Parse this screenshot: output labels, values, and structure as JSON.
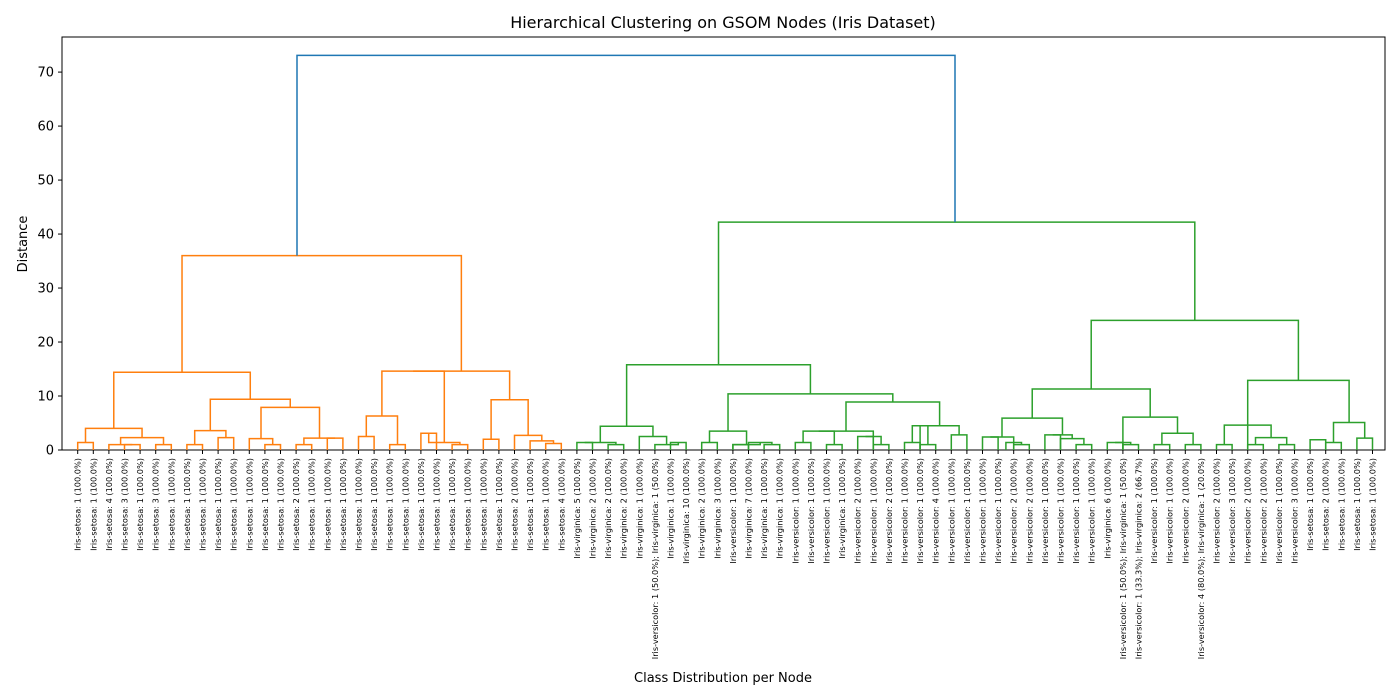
{
  "chart_data": {
    "type": "dendrogram",
    "title": "Hierarchical Clustering on GSOM Nodes (Iris Dataset)",
    "xlabel": "Class Distribution per Node",
    "ylabel": "Distance",
    "ylim": [
      0,
      76.5
    ],
    "yticks": [
      0,
      10,
      20,
      30,
      40,
      50,
      60,
      70
    ],
    "grid": false,
    "colors": {
      "root": "#1f77b4",
      "cluster_1": "#ff7f0e",
      "cluster_2": "#2ca02c"
    },
    "leaves": [
      "Iris-setosa: 1 (100.0%)",
      "Iris-setosa: 1 (100.0%)",
      "Iris-setosa: 4 (100.0%)",
      "Iris-setosa: 3 (100.0%)",
      "Iris-setosa: 1 (100.0%)",
      "Iris-setosa: 3 (100.0%)",
      "Iris-setosa: 1 (100.0%)",
      "Iris-setosa: 1 (100.0%)",
      "Iris-setosa: 1 (100.0%)",
      "Iris-setosa: 1 (100.0%)",
      "Iris-setosa: 1 (100.0%)",
      "Iris-setosa: 1 (100.0%)",
      "Iris-setosa: 1 (100.0%)",
      "Iris-setosa: 1 (100.0%)",
      "Iris-setosa: 2 (100.0%)",
      "Iris-setosa: 1 (100.0%)",
      "Iris-setosa: 1 (100.0%)",
      "Iris-setosa: 1 (100.0%)",
      "Iris-setosa: 1 (100.0%)",
      "Iris-setosa: 1 (100.0%)",
      "Iris-setosa: 1 (100.0%)",
      "Iris-setosa: 1 (100.0%)",
      "Iris-setosa: 1 (100.0%)",
      "Iris-setosa: 1 (100.0%)",
      "Iris-setosa: 1 (100.0%)",
      "Iris-setosa: 1 (100.0%)",
      "Iris-setosa: 1 (100.0%)",
      "Iris-setosa: 1 (100.0%)",
      "Iris-setosa: 2 (100.0%)",
      "Iris-setosa: 1 (100.0%)",
      "Iris-setosa: 1 (100.0%)",
      "Iris-setosa: 4 (100.0%)",
      "Iris-virginica: 5 (100.0%)",
      "Iris-virginica: 2 (100.0%)",
      "Iris-virginica: 2 (100.0%)",
      "Iris-virginica: 2 (100.0%)",
      "Iris-virginica: 1 (100.0%)",
      "Iris-versicolor: 1 (50.0%); Iris-virginica: 1 (50.0%)",
      "Iris-virginica: 1 (100.0%)",
      "Iris-virginica: 10 (100.0%)",
      "Iris-virginica: 2 (100.0%)",
      "Iris-virginica: 3 (100.0%)",
      "Iris-versicolor: 1 (100.0%)",
      "Iris-virginica: 7 (100.0%)",
      "Iris-virginica: 1 (100.0%)",
      "Iris-virginica: 1 (100.0%)",
      "Iris-versicolor: 1 (100.0%)",
      "Iris-versicolor: 1 (100.0%)",
      "Iris-versicolor: 1 (100.0%)",
      "Iris-virginica: 1 (100.0%)",
      "Iris-versicolor: 2 (100.0%)",
      "Iris-versicolor: 1 (100.0%)",
      "Iris-versicolor: 2 (100.0%)",
      "Iris-versicolor: 1 (100.0%)",
      "Iris-versicolor: 1 (100.0%)",
      "Iris-versicolor: 4 (100.0%)",
      "Iris-versicolor: 1 (100.0%)",
      "Iris-versicolor: 1 (100.0%)",
      "Iris-versicolor: 1 (100.0%)",
      "Iris-versicolor: 1 (100.0%)",
      "Iris-versicolor: 2 (100.0%)",
      "Iris-versicolor: 2 (100.0%)",
      "Iris-versicolor: 1 (100.0%)",
      "Iris-versicolor: 1 (100.0%)",
      "Iris-versicolor: 1 (100.0%)",
      "Iris-versicolor: 1 (100.0%)",
      "Iris-virginica: 6 (100.0%)",
      "Iris-versicolor: 1 (50.0%); Iris-virginica: 1 (50.0%)",
      "Iris-versicolor: 1 (33.3%); Iris-virginica: 2 (66.7%)",
      "Iris-versicolor: 1 (100.0%)",
      "Iris-versicolor: 1 (100.0%)",
      "Iris-versicolor: 2 (100.0%)",
      "Iris-versicolor: 4 (80.0%); Iris-virginica: 1 (20.0%)",
      "Iris-versicolor: 2 (100.0%)",
      "Iris-versicolor: 3 (100.0%)",
      "Iris-versicolor: 2 (100.0%)",
      "Iris-versicolor: 2 (100.0%)",
      "Iris-versicolor: 1 (100.0%)",
      "Iris-versicolor: 3 (100.0%)",
      "Iris-setosa: 1 (100.0%)",
      "Iris-setosa: 2 (100.0%)",
      "Iris-setosa: 1 (100.0%)",
      "Iris-setosa: 1 (100.0%)",
      "Iris-setosa: 1 (100.0%)"
    ],
    "root_link": {
      "x": [
        297,
        955
      ],
      "height": 73.1,
      "color": "root"
    },
    "links": [
      {
        "a": 0,
        "b": 1,
        "h": 1.4,
        "c": "cluster_1"
      },
      {
        "a": 3,
        "b": 4,
        "h": 1.0,
        "c": "cluster_1"
      },
      {
        "a": 5,
        "b": 6,
        "h": 1.0,
        "c": "cluster_1"
      },
      {
        "a": 2,
        "b": 3.5,
        "h": 1.0,
        "c": "cluster_1"
      },
      {
        "a": 2.75,
        "b": 5.5,
        "h": 2.3,
        "c": "cluster_1"
      },
      {
        "a": 0.5,
        "b": 4.125,
        "h": 4.0,
        "c": "cluster_1"
      },
      {
        "a": 7,
        "b": 8,
        "h": 1.0,
        "c": "cluster_1"
      },
      {
        "a": 9,
        "b": 10,
        "h": 2.3,
        "c": "cluster_1"
      },
      {
        "a": 7.5,
        "b": 9.5,
        "h": 3.6,
        "c": "cluster_1"
      },
      {
        "a": 12,
        "b": 13,
        "h": 1.0,
        "c": "cluster_1"
      },
      {
        "a": 11,
        "b": 12.5,
        "h": 2.1,
        "c": "cluster_1"
      },
      {
        "a": 14,
        "b": 15,
        "h": 1.0,
        "c": "cluster_1"
      },
      {
        "a": 16,
        "b": 17,
        "h": 2.2,
        "c": "cluster_1"
      },
      {
        "a": 14.5,
        "b": 16.5,
        "h": 2.2,
        "c": "cluster_1"
      },
      {
        "a": 11.75,
        "b": 15.5,
        "h": 7.9,
        "c": "cluster_1"
      },
      {
        "a": 8.5,
        "b": 13.625,
        "h": 9.4,
        "c": "cluster_1"
      },
      {
        "a": 2.3125,
        "b": 11.0625,
        "h": 14.4,
        "c": "cluster_1"
      },
      {
        "a": 18,
        "b": 19,
        "h": 2.5,
        "c": "cluster_1"
      },
      {
        "a": 20,
        "b": 21,
        "h": 1.0,
        "c": "cluster_1"
      },
      {
        "a": 18.5,
        "b": 20.5,
        "h": 6.3,
        "c": "cluster_1"
      },
      {
        "a": 22,
        "b": 23,
        "h": 3.1,
        "c": "cluster_1"
      },
      {
        "a": 24,
        "b": 25,
        "h": 1.0,
        "c": "cluster_1"
      },
      {
        "a": 22.5,
        "b": 24.5,
        "h": 1.4,
        "c": "cluster_1"
      },
      {
        "a": 19.5,
        "b": 23.5,
        "h": 14.6,
        "c": "cluster_1"
      },
      {
        "a": 26,
        "b": 27,
        "h": 2.0,
        "c": "cluster_1"
      },
      {
        "a": 30,
        "b": 31,
        "h": 1.2,
        "c": "cluster_1"
      },
      {
        "a": 29,
        "b": 30.5,
        "h": 1.7,
        "c": "cluster_1"
      },
      {
        "a": 28,
        "b": 29.75,
        "h": 2.7,
        "c": "cluster_1"
      },
      {
        "a": 26.5,
        "b": 28.875,
        "h": 9.3,
        "c": "cluster_1"
      },
      {
        "a": 21.5,
        "b": 27.6875,
        "h": 14.6,
        "c": "cluster_1"
      },
      {
        "a": 6.6875,
        "b": 24.59375,
        "h": 36.0,
        "c": "cluster_1"
      },
      {
        "a": 32,
        "b": 33,
        "h": 1.4,
        "c": "cluster_2"
      },
      {
        "a": 34,
        "b": 35,
        "h": 1.0,
        "c": "cluster_2"
      },
      {
        "a": 32.5,
        "b": 34.5,
        "h": 1.4,
        "c": "cluster_2"
      },
      {
        "a": 38,
        "b": 39,
        "h": 1.4,
        "c": "cluster_2"
      },
      {
        "a": 37,
        "b": 38.5,
        "h": 1.0,
        "c": "cluster_2"
      },
      {
        "a": 36,
        "b": 37.75,
        "h": 2.5,
        "c": "cluster_2"
      },
      {
        "a": 33.5,
        "b": 36.875,
        "h": 4.4,
        "c": "cluster_2"
      },
      {
        "a": 40,
        "b": 41,
        "h": 1.4,
        "c": "cluster_2"
      },
      {
        "a": 42,
        "b": 43,
        "h": 1.0,
        "c": "cluster_2"
      },
      {
        "a": 44,
        "b": 45,
        "h": 1.0,
        "c": "cluster_2"
      },
      {
        "a": 43,
        "b": 44.5,
        "h": 1.4,
        "c": "cluster_2"
      },
      {
        "a": 42,
        "b": 43.75,
        "h": 1.0,
        "c": "cluster_2"
      },
      {
        "a": 40.5,
        "b": 42.875,
        "h": 3.5,
        "c": "cluster_2"
      },
      {
        "a": 46,
        "b": 47,
        "h": 1.4,
        "c": "cluster_2"
      },
      {
        "a": 48,
        "b": 49,
        "h": 1.0,
        "c": "cluster_2"
      },
      {
        "a": 46.5,
        "b": 48.5,
        "h": 3.5,
        "c": "cluster_2"
      },
      {
        "a": 50,
        "b": 51,
        "h": 2.5,
        "c": "cluster_2"
      },
      {
        "a": 51,
        "b": 52,
        "h": 1.0,
        "c": "cluster_2"
      },
      {
        "a": 50.5,
        "b": 51.5,
        "h": 2.5,
        "c": "cluster_2"
      },
      {
        "a": 47.5,
        "b": 51,
        "h": 3.5,
        "c": "cluster_2"
      },
      {
        "a": 53,
        "b": 54,
        "h": 1.4,
        "c": "cluster_2"
      },
      {
        "a": 54,
        "b": 55,
        "h": 1.0,
        "c": "cluster_2"
      },
      {
        "a": 53.5,
        "b": 54.5,
        "h": 4.5,
        "c": "cluster_2"
      },
      {
        "a": 56,
        "b": 57,
        "h": 2.8,
        "c": "cluster_2"
      },
      {
        "a": 54,
        "b": 56.5,
        "h": 4.5,
        "c": "cluster_2"
      },
      {
        "a": 49.25,
        "b": 55.25,
        "h": 8.9,
        "c": "cluster_2"
      },
      {
        "a": 41.6875,
        "b": 52.25,
        "h": 10.4,
        "c": "cluster_2"
      },
      {
        "a": 35.1875,
        "b": 46.96875,
        "h": 15.8,
        "c": "cluster_2"
      },
      {
        "a": 58,
        "b": 59,
        "h": 2.4,
        "c": "cluster_2"
      },
      {
        "a": 60,
        "b": 61,
        "h": 1.0,
        "c": "cluster_2"
      },
      {
        "a": 59.5,
        "b": 60.5,
        "h": 1.4,
        "c": "cluster_2"
      },
      {
        "a": 58.5,
        "b": 60,
        "h": 2.4,
        "c": "cluster_2"
      },
      {
        "a": 62,
        "b": 63,
        "h": 2.8,
        "c": "cluster_2"
      },
      {
        "a": 64,
        "b": 65,
        "h": 1.0,
        "c": "cluster_2"
      },
      {
        "a": 63,
        "b": 64.5,
        "h": 2.1,
        "c": "cluster_2"
      },
      {
        "a": 62.5,
        "b": 63.75,
        "h": 2.8,
        "c": "cluster_2"
      },
      {
        "a": 59.25,
        "b": 63.125,
        "h": 5.9,
        "c": "cluster_2"
      },
      {
        "a": 66,
        "b": 67,
        "h": 1.4,
        "c": "cluster_2"
      },
      {
        "a": 67,
        "b": 68,
        "h": 1.0,
        "c": "cluster_2"
      },
      {
        "a": 66.5,
        "b": 67.5,
        "h": 1.4,
        "c": "cluster_2"
      },
      {
        "a": 69,
        "b": 70,
        "h": 1.0,
        "c": "cluster_2"
      },
      {
        "a": 71,
        "b": 72,
        "h": 1.0,
        "c": "cluster_2"
      },
      {
        "a": 69.5,
        "b": 71.5,
        "h": 3.1,
        "c": "cluster_2"
      },
      {
        "a": 67,
        "b": 70.5,
        "h": 6.1,
        "c": "cluster_2"
      },
      {
        "a": 61.1875,
        "b": 68.75,
        "h": 11.3,
        "c": "cluster_2"
      },
      {
        "a": 73,
        "b": 74,
        "h": 1.0,
        "c": "cluster_2"
      },
      {
        "a": 75,
        "b": 76,
        "h": 1.0,
        "c": "cluster_2"
      },
      {
        "a": 77,
        "b": 78,
        "h": 1.0,
        "c": "cluster_2"
      },
      {
        "a": 75.5,
        "b": 77.5,
        "h": 2.3,
        "c": "cluster_2"
      },
      {
        "a": 73.5,
        "b": 76.5,
        "h": 4.6,
        "c": "cluster_2"
      },
      {
        "a": 79,
        "b": 80,
        "h": 1.9,
        "c": "cluster_2"
      },
      {
        "a": 80,
        "b": 81,
        "h": 1.4,
        "c": "cluster_2"
      },
      {
        "a": 82,
        "b": 83,
        "h": 2.2,
        "c": "cluster_2"
      },
      {
        "a": 80.5,
        "b": 82.5,
        "h": 5.1,
        "c": "cluster_2"
      },
      {
        "a": 75,
        "b": 81.5,
        "h": 12.9,
        "c": "cluster_2"
      },
      {
        "a": 64.96875,
        "b": 78.25,
        "h": 24.0,
        "c": "cluster_2"
      },
      {
        "a": 41.078125,
        "b": 71.609375,
        "h": 42.2,
        "c": "cluster_2"
      }
    ]
  }
}
